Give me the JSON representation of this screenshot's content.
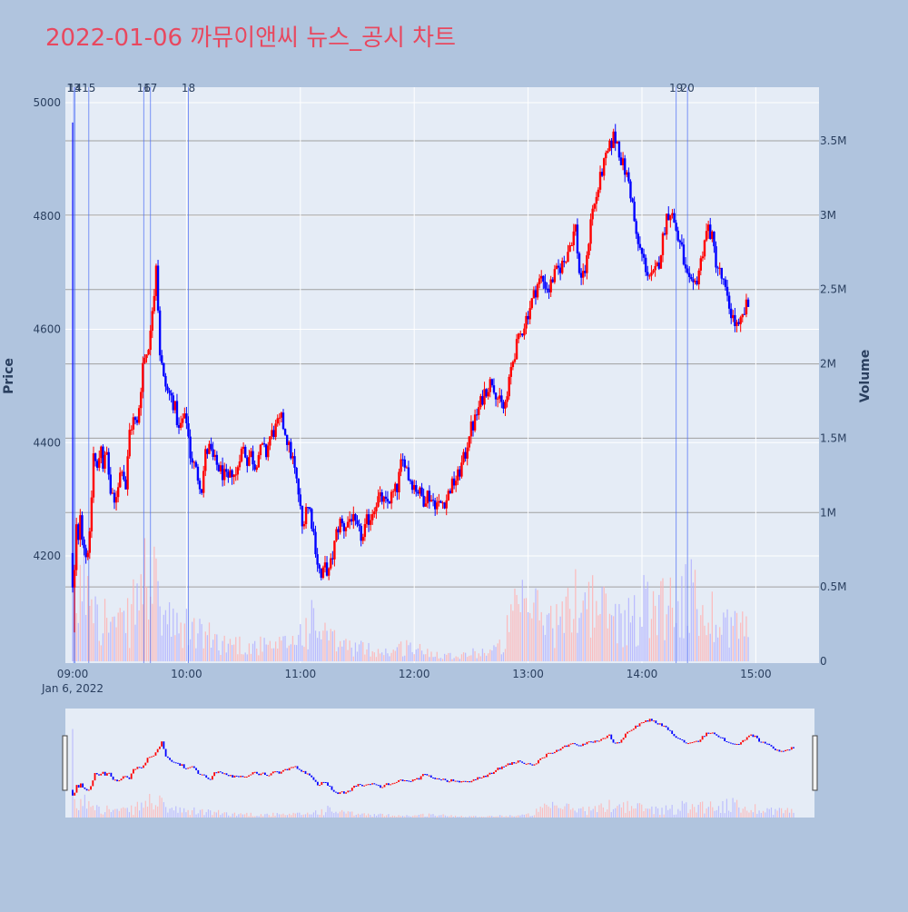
{
  "title": "2022-01-06 까뮤이앤씨 뉴스_공시 차트",
  "colors": {
    "page_bg": "#b0c4de",
    "plot_bg": "#e5ecf6",
    "up": "#ff0000",
    "down": "#0000ff",
    "title": "#e8485f",
    "text": "#2a3f5f",
    "grid_price": "#ffffff",
    "grid_volume": "#a0a0a0",
    "marker_line": "#4a6cf7"
  },
  "chart_data": {
    "type": "candlestick",
    "ylabel": "Price",
    "y2label": "Volume",
    "ylim": [
      4020,
      5020
    ],
    "y2lim": [
      0,
      3870000
    ],
    "y_ticks": [
      4200,
      4400,
      4600,
      4800,
      5000
    ],
    "y2_ticks": [
      {
        "value": 0,
        "label": "0"
      },
      {
        "value": 500000,
        "label": "0.5M"
      },
      {
        "value": 1000000,
        "label": "1M"
      },
      {
        "value": 1500000,
        "label": "1.5M"
      },
      {
        "value": 2000000,
        "label": "2M"
      },
      {
        "value": 2500000,
        "label": "2.5M"
      },
      {
        "value": 3000000,
        "label": "3M"
      },
      {
        "value": 3500000,
        "label": "3.5M"
      }
    ],
    "x_range_minutes": [
      540,
      932
    ],
    "x_ticks": [
      {
        "minute": 540,
        "label": "09:00"
      },
      {
        "minute": 600,
        "label": "10:00"
      },
      {
        "minute": 660,
        "label": "11:00"
      },
      {
        "minute": 720,
        "label": "12:00"
      },
      {
        "minute": 780,
        "label": "13:00"
      },
      {
        "minute": 840,
        "label": "14:00"
      },
      {
        "minute": 900,
        "label": "15:00"
      }
    ],
    "x_date_label": "Jan 6, 2022",
    "news_markers": [
      {
        "minute": 540.5,
        "label": "13"
      },
      {
        "minute": 541.2,
        "label": "14"
      },
      {
        "minute": 548.5,
        "label": "15"
      },
      {
        "minute": 577.5,
        "label": "16"
      },
      {
        "minute": 581,
        "label": "17"
      },
      {
        "minute": 601,
        "label": "18"
      },
      {
        "minute": 858,
        "label": "19"
      },
      {
        "minute": 864,
        "label": "20"
      }
    ],
    "price_path": [
      [
        540,
        4205
      ],
      [
        541,
        4140
      ],
      [
        542,
        4170
      ],
      [
        543,
        4250
      ],
      [
        544,
        4220
      ],
      [
        545,
        4280
      ],
      [
        546,
        4240
      ],
      [
        548,
        4200
      ],
      [
        550,
        4230
      ],
      [
        552,
        4380
      ],
      [
        554,
        4350
      ],
      [
        556,
        4400
      ],
      [
        557,
        4360
      ],
      [
        559,
        4380
      ],
      [
        561,
        4310
      ],
      [
        563,
        4290
      ],
      [
        565,
        4330
      ],
      [
        567,
        4360
      ],
      [
        569,
        4320
      ],
      [
        571,
        4420
      ],
      [
        573,
        4440
      ],
      [
        575,
        4430
      ],
      [
        577,
        4500
      ],
      [
        578,
        4540
      ],
      [
        580,
        4560
      ],
      [
        582,
        4590
      ],
      [
        583,
        4640
      ],
      [
        584,
        4670
      ],
      [
        585,
        4720
      ],
      [
        586,
        4640
      ],
      [
        587,
        4560
      ],
      [
        589,
        4510
      ],
      [
        591,
        4490
      ],
      [
        593,
        4480
      ],
      [
        595,
        4460
      ],
      [
        597,
        4420
      ],
      [
        599,
        4440
      ],
      [
        601,
        4440
      ],
      [
        603,
        4380
      ],
      [
        605,
        4360
      ],
      [
        607,
        4340
      ],
      [
        609,
        4320
      ],
      [
        611,
        4380
      ],
      [
        613,
        4390
      ],
      [
        615,
        4370
      ],
      [
        617,
        4360
      ],
      [
        619,
        4350
      ],
      [
        621,
        4340
      ],
      [
        623,
        4330
      ],
      [
        625,
        4350
      ],
      [
        627,
        4340
      ],
      [
        629,
        4380
      ],
      [
        631,
        4390
      ],
      [
        633,
        4370
      ],
      [
        635,
        4380
      ],
      [
        637,
        4360
      ],
      [
        639,
        4380
      ],
      [
        641,
        4390
      ],
      [
        643,
        4380
      ],
      [
        645,
        4410
      ],
      [
        647,
        4420
      ],
      [
        649,
        4430
      ],
      [
        651,
        4440
      ],
      [
        653,
        4420
      ],
      [
        655,
        4390
      ],
      [
        657,
        4370
      ],
      [
        659,
        4330
      ],
      [
        660,
        4310
      ],
      [
        662,
        4250
      ],
      [
        664,
        4290
      ],
      [
        666,
        4280
      ],
      [
        668,
        4240
      ],
      [
        670,
        4190
      ],
      [
        672,
        4160
      ],
      [
        674,
        4180
      ],
      [
        676,
        4170
      ],
      [
        678,
        4200
      ],
      [
        680,
        4240
      ],
      [
        682,
        4260
      ],
      [
        684,
        4250
      ],
      [
        686,
        4260
      ],
      [
        688,
        4270
      ],
      [
        690,
        4250
      ],
      [
        692,
        4240
      ],
      [
        694,
        4230
      ],
      [
        696,
        4260
      ],
      [
        698,
        4270
      ],
      [
        700,
        4290
      ],
      [
        702,
        4300
      ],
      [
        704,
        4300
      ],
      [
        706,
        4290
      ],
      [
        708,
        4300
      ],
      [
        710,
        4310
      ],
      [
        712,
        4320
      ],
      [
        714,
        4360
      ],
      [
        716,
        4370
      ],
      [
        718,
        4340
      ],
      [
        720,
        4330
      ],
      [
        722,
        4320
      ],
      [
        724,
        4310
      ],
      [
        726,
        4300
      ],
      [
        728,
        4310
      ],
      [
        730,
        4300
      ],
      [
        732,
        4295
      ],
      [
        734,
        4290
      ],
      [
        736,
        4295
      ],
      [
        738,
        4300
      ],
      [
        740,
        4320
      ],
      [
        742,
        4330
      ],
      [
        744,
        4340
      ],
      [
        746,
        4360
      ],
      [
        748,
        4380
      ],
      [
        750,
        4420
      ],
      [
        752,
        4430
      ],
      [
        754,
        4450
      ],
      [
        756,
        4470
      ],
      [
        758,
        4490
      ],
      [
        760,
        4500
      ],
      [
        762,
        4510
      ],
      [
        764,
        4490
      ],
      [
        766,
        4470
      ],
      [
        768,
        4460
      ],
      [
        770,
        4480
      ],
      [
        772,
        4530
      ],
      [
        774,
        4560
      ],
      [
        776,
        4580
      ],
      [
        778,
        4600
      ],
      [
        780,
        4620
      ],
      [
        782,
        4640
      ],
      [
        784,
        4660
      ],
      [
        786,
        4680
      ],
      [
        788,
        4690
      ],
      [
        790,
        4680
      ],
      [
        792,
        4670
      ],
      [
        794,
        4690
      ],
      [
        796,
        4700
      ],
      [
        798,
        4710
      ],
      [
        800,
        4720
      ],
      [
        802,
        4740
      ],
      [
        804,
        4760
      ],
      [
        806,
        4780
      ],
      [
        808,
        4700
      ],
      [
        810,
        4690
      ],
      [
        812,
        4720
      ],
      [
        814,
        4800
      ],
      [
        816,
        4820
      ],
      [
        818,
        4850
      ],
      [
        820,
        4880
      ],
      [
        822,
        4900
      ],
      [
        824,
        4920
      ],
      [
        826,
        4940
      ],
      [
        828,
        4930
      ],
      [
        830,
        4900
      ],
      [
        832,
        4880
      ],
      [
        834,
        4860
      ],
      [
        836,
        4820
      ],
      [
        838,
        4760
      ],
      [
        840,
        4740
      ],
      [
        842,
        4720
      ],
      [
        844,
        4700
      ],
      [
        846,
        4690
      ],
      [
        848,
        4700
      ],
      [
        850,
        4720
      ],
      [
        852,
        4760
      ],
      [
        854,
        4800
      ],
      [
        856,
        4810
      ],
      [
        858,
        4790
      ],
      [
        860,
        4760
      ],
      [
        862,
        4740
      ],
      [
        864,
        4700
      ],
      [
        866,
        4680
      ],
      [
        868,
        4670
      ],
      [
        870,
        4690
      ],
      [
        872,
        4720
      ],
      [
        874,
        4760
      ],
      [
        876,
        4780
      ],
      [
        878,
        4760
      ],
      [
        880,
        4720
      ],
      [
        882,
        4700
      ],
      [
        884,
        4680
      ],
      [
        886,
        4650
      ],
      [
        888,
        4630
      ],
      [
        890,
        4610
      ],
      [
        892,
        4600
      ],
      [
        894,
        4620
      ],
      [
        896,
        4640
      ]
    ],
    "volume_profile": [
      [
        540,
        420000
      ],
      [
        543,
        380000
      ],
      [
        546,
        510000
      ],
      [
        549,
        560000
      ],
      [
        552,
        480000
      ],
      [
        555,
        300000
      ],
      [
        558,
        260000
      ],
      [
        561,
        240000
      ],
      [
        564,
        210000
      ],
      [
        567,
        230000
      ],
      [
        570,
        250000
      ],
      [
        573,
        380000
      ],
      [
        576,
        440000
      ],
      [
        579,
        560000
      ],
      [
        582,
        490000
      ],
      [
        585,
        360000
      ],
      [
        588,
        300000
      ],
      [
        591,
        240000
      ],
      [
        594,
        200000
      ],
      [
        597,
        180000
      ],
      [
        600,
        210000
      ],
      [
        603,
        200000
      ],
      [
        606,
        180000
      ],
      [
        609,
        170000
      ],
      [
        612,
        150000
      ],
      [
        615,
        140000
      ],
      [
        618,
        120000
      ],
      [
        621,
        110000
      ],
      [
        624,
        120000
      ],
      [
        627,
        110000
      ],
      [
        630,
        100000
      ],
      [
        633,
        90000
      ],
      [
        636,
        95000
      ],
      [
        639,
        100000
      ],
      [
        642,
        90000
      ],
      [
        645,
        85000
      ],
      [
        648,
        90000
      ],
      [
        651,
        110000
      ],
      [
        654,
        120000
      ],
      [
        657,
        140000
      ],
      [
        660,
        180000
      ],
      [
        663,
        200000
      ],
      [
        666,
        240000
      ],
      [
        669,
        200000
      ],
      [
        672,
        180000
      ],
      [
        675,
        150000
      ],
      [
        678,
        120000
      ],
      [
        681,
        110000
      ],
      [
        684,
        100000
      ],
      [
        687,
        90000
      ],
      [
        690,
        85000
      ],
      [
        693,
        80000
      ],
      [
        696,
        75000
      ],
      [
        699,
        70000
      ],
      [
        702,
        65000
      ],
      [
        705,
        60000
      ],
      [
        708,
        65000
      ],
      [
        711,
        70000
      ],
      [
        714,
        90000
      ],
      [
        717,
        100000
      ],
      [
        720,
        80000
      ],
      [
        723,
        70000
      ],
      [
        726,
        60000
      ],
      [
        729,
        55000
      ],
      [
        732,
        50000
      ],
      [
        735,
        45000
      ],
      [
        738,
        40000
      ],
      [
        741,
        35000
      ],
      [
        744,
        40000
      ],
      [
        747,
        45000
      ],
      [
        750,
        50000
      ],
      [
        753,
        55000
      ],
      [
        756,
        60000
      ],
      [
        759,
        65000
      ],
      [
        762,
        70000
      ],
      [
        765,
        90000
      ],
      [
        768,
        150000
      ],
      [
        771,
        260000
      ],
      [
        774,
        300000
      ],
      [
        777,
        320000
      ],
      [
        780,
        340000
      ],
      [
        783,
        330000
      ],
      [
        786,
        300000
      ],
      [
        789,
        280000
      ],
      [
        792,
        260000
      ],
      [
        795,
        250000
      ],
      [
        798,
        260000
      ],
      [
        801,
        300000
      ],
      [
        804,
        380000
      ],
      [
        807,
        440000
      ],
      [
        810,
        420000
      ],
      [
        813,
        380000
      ],
      [
        816,
        350000
      ],
      [
        819,
        320000
      ],
      [
        822,
        300000
      ],
      [
        825,
        280000
      ],
      [
        828,
        270000
      ],
      [
        831,
        260000
      ],
      [
        834,
        260000
      ],
      [
        837,
        280000
      ],
      [
        840,
        330000
      ],
      [
        843,
        380000
      ],
      [
        846,
        420000
      ],
      [
        849,
        400000
      ],
      [
        852,
        380000
      ],
      [
        855,
        360000
      ],
      [
        858,
        400000
      ],
      [
        861,
        380000
      ],
      [
        864,
        420000
      ],
      [
        867,
        380000
      ],
      [
        870,
        340000
      ],
      [
        873,
        320000
      ],
      [
        876,
        300000
      ],
      [
        879,
        280000
      ],
      [
        882,
        260000
      ],
      [
        885,
        250000
      ],
      [
        888,
        240000
      ],
      [
        891,
        230000
      ],
      [
        894,
        220000
      ],
      [
        897,
        200000
      ]
    ],
    "last_price_minute": 896,
    "last_price": 4642
  }
}
